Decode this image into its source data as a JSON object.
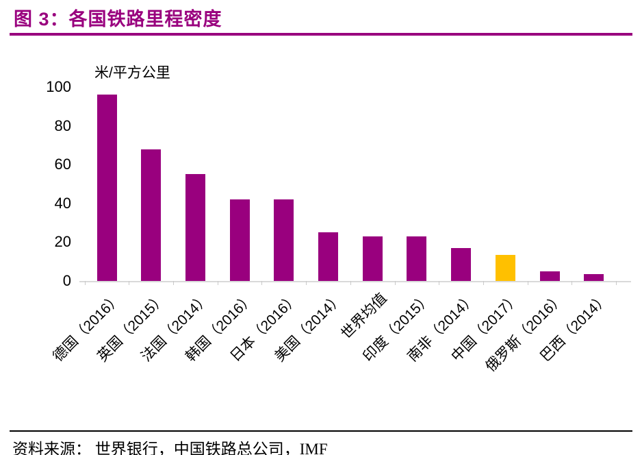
{
  "header": {
    "title": "图 3：各国铁路里程密度"
  },
  "chart_data": {
    "type": "bar",
    "title": "图 3：各国铁路里程密度",
    "unit_label": "米/平方公里",
    "categories": [
      "德国（2016）",
      "英国（2015）",
      "法国（2014）",
      "韩国（2016）",
      "日本（2016）",
      "美国（2014）",
      "世界均值",
      "印度（2015）",
      "南非（2014）",
      "中国（2017）",
      "俄罗斯（2016）",
      "巴西（2014）"
    ],
    "values": [
      96,
      68,
      55,
      42,
      42,
      25,
      23,
      23,
      17,
      13.5,
      5,
      3.5
    ],
    "highlight_index": 9,
    "yticks": [
      0,
      20,
      40,
      60,
      80,
      100
    ],
    "ylim": [
      0,
      100
    ],
    "bar_color": "#99007E",
    "highlight_color": "#FFC000",
    "legend": "none",
    "grid": "off"
  },
  "footer": {
    "source": "资料来源： 世界银行，中国铁路总公司，IMF"
  }
}
